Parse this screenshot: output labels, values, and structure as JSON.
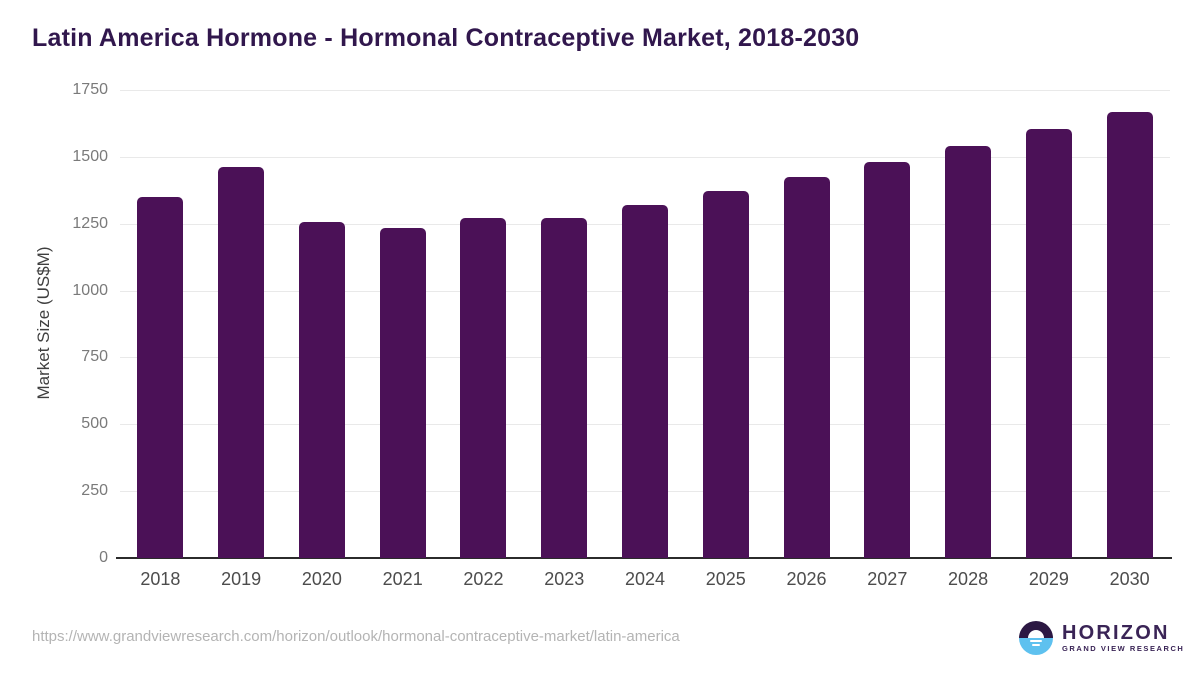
{
  "footer": {
    "source_url": "https://www.grandviewresearch.com/horizon/outlook/hormonal-contraceptive-market/latin-america",
    "logo_name": "HORIZON",
    "logo_subtitle": "GRAND VIEW RESEARCH"
  },
  "chart_data": {
    "type": "bar",
    "title": "Latin America Hormone - Hormonal Contraceptive Market, 2018-2030",
    "categories": [
      "2018",
      "2019",
      "2020",
      "2021",
      "2022",
      "2023",
      "2024",
      "2025",
      "2026",
      "2027",
      "2028",
      "2029",
      "2030"
    ],
    "values": [
      1350,
      1462,
      1257,
      1233,
      1271,
      1272,
      1320,
      1372,
      1425,
      1482,
      1541,
      1606,
      1668
    ],
    "xlabel": "",
    "ylabel": "Market Size (US$M)",
    "ylim": [
      0,
      1750
    ],
    "ytick_step": 250,
    "yticks": [
      0,
      250,
      500,
      750,
      1000,
      1250,
      1500,
      1750
    ],
    "grid": "horizontal-only",
    "legend": "none",
    "bar_color": "#4b1157",
    "colors": {
      "title": "#31174d",
      "y_axis_label": "#3f3f3f",
      "y_tick": "#7a7a7a",
      "x_tick": "#4c4c4c",
      "gridline": "#e9e9e9",
      "axis_line": "#2b2b2b",
      "source_url": "#b4b4b4",
      "logo_dark_purple": "#2c1843",
      "logo_blue": "#5ec1ef",
      "logo_text": "#3a2456"
    }
  }
}
